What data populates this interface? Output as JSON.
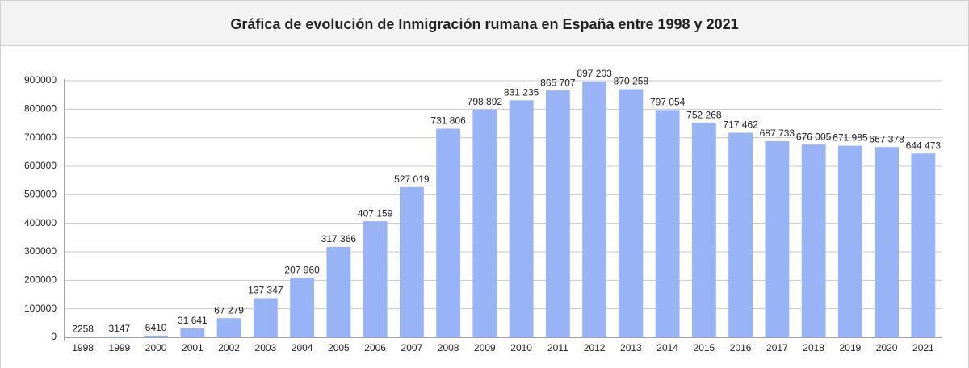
{
  "chart_data": {
    "type": "bar",
    "title": "Gráfica de evolución de Inmigración rumana en España entre 1998 y 2021",
    "categories": [
      "1998",
      "1999",
      "2000",
      "2001",
      "2002",
      "2003",
      "2004",
      "2005",
      "2006",
      "2007",
      "2008",
      "2009",
      "2010",
      "2011",
      "2012",
      "2013",
      "2014",
      "2015",
      "2016",
      "2017",
      "2018",
      "2019",
      "2020",
      "2021"
    ],
    "values": [
      2258,
      3147,
      6410,
      31641,
      67279,
      137347,
      207960,
      317366,
      407159,
      527019,
      731806,
      798892,
      831235,
      865707,
      897203,
      870258,
      797054,
      752268,
      717462,
      687733,
      676005,
      671985,
      667378,
      644473
    ],
    "value_labels": [
      "2258",
      "3147",
      "6410",
      "31 641",
      "67 279",
      "137 347",
      "207 960",
      "317 366",
      "407 159",
      "527 019",
      "731 806",
      "798 892",
      "831 235",
      "865 707",
      "897 203",
      "870 258",
      "797 054",
      "752 268",
      "717 462",
      "687 733",
      "676 005",
      "671 985",
      "667 378",
      "644 473"
    ],
    "color": "#99b4f6",
    "ylim": [
      0,
      900000
    ],
    "yticks": [
      0,
      100000,
      200000,
      300000,
      400000,
      500000,
      600000,
      700000,
      800000,
      900000
    ],
    "grid": true
  }
}
